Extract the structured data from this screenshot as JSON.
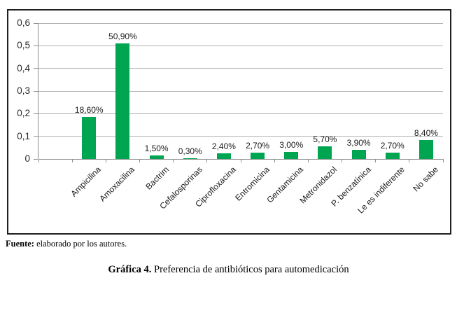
{
  "chart_data": {
    "type": "bar",
    "title": "",
    "xlabel": "",
    "ylabel": "",
    "categories": [
      "Ampicilina",
      "Amoxacilina",
      "Bactrim",
      "Cefalosporinas",
      "Ciprofloxacina",
      "Entromicina",
      "Gentamicina",
      "Metronidazol",
      "P. benzatínica",
      "Le es indiferente",
      "No sabe"
    ],
    "values": [
      0.186,
      0.509,
      0.015,
      0.003,
      0.024,
      0.027,
      0.03,
      0.057,
      0.039,
      0.027,
      0.084
    ],
    "data_labels": [
      "18,60%",
      "50,90%",
      "1,50%",
      "0,30%",
      "2,40%",
      "2,70%",
      "3,00%",
      "5,70%",
      "3,90%",
      "2,70%",
      "8,40%"
    ],
    "ylim": [
      0,
      0.6
    ],
    "y_ticks": [
      {
        "value": 0.6,
        "label": "0,6"
      },
      {
        "value": 0.5,
        "label": "0,5"
      },
      {
        "value": 0.4,
        "label": "0,4"
      },
      {
        "value": 0.3,
        "label": "0,3"
      },
      {
        "value": 0.2,
        "label": "0,2"
      },
      {
        "value": 0.1,
        "label": "0,1"
      },
      {
        "value": 0.0,
        "label": "0"
      }
    ],
    "grid": true,
    "legend": false,
    "label_rotation_deg": -45,
    "colors": {
      "bar": "#00a551",
      "gridline": "#b0b0b0",
      "axis": "#8c8c8c",
      "frame_border": "#1f1f1f",
      "text": "#1a1a1a"
    }
  },
  "footer": {
    "source_label": "Fuente:",
    "source_text": "elaborado por los autores."
  },
  "caption": {
    "label": "Gráfica 4.",
    "text": "Preferencia de antibióticos para automedicación"
  }
}
